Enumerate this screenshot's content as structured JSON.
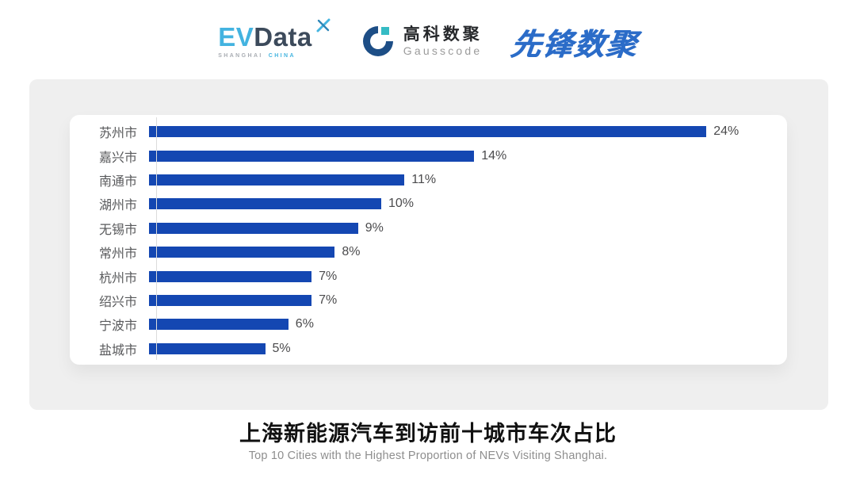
{
  "header": {
    "evdata": {
      "ev": "EV",
      "data": "Data",
      "sub_shanghai": "SHANGHAI",
      "sub_china": "CHINA"
    },
    "gausscode": {
      "cn": "高科数聚",
      "en": "Gausscode"
    },
    "pioneer": {
      "text": "先锋数聚"
    }
  },
  "chart_data": {
    "type": "bar",
    "orientation": "horizontal",
    "categories": [
      "苏州市",
      "嘉兴市",
      "南通市",
      "湖州市",
      "无锡市",
      "常州市",
      "杭州市",
      "绍兴市",
      "宁波市",
      "盐城市"
    ],
    "values": [
      24,
      14,
      11,
      10,
      9,
      8,
      7,
      7,
      6,
      5
    ],
    "value_labels": [
      "24%",
      "14%",
      "11%",
      "10%",
      "9%",
      "8%",
      "7%",
      "7%",
      "6%",
      "5%"
    ],
    "bar_color": "#1447B2",
    "axis_color": "#DCDCDC",
    "label_color": "#58595B",
    "grid": false,
    "legend": false,
    "xlim": [
      0,
      27
    ],
    "title": "上海新能源汽车到访前十城市车次占比",
    "subtitle": "Top 10 Cities with the Highest Proportion of  NEVs Visiting Shanghai."
  },
  "footer": {
    "title": "上海新能源汽车到访前十城市车次占比",
    "subtitle": "Top 10 Cities with the Highest Proportion of  NEVs Visiting Shanghai."
  }
}
